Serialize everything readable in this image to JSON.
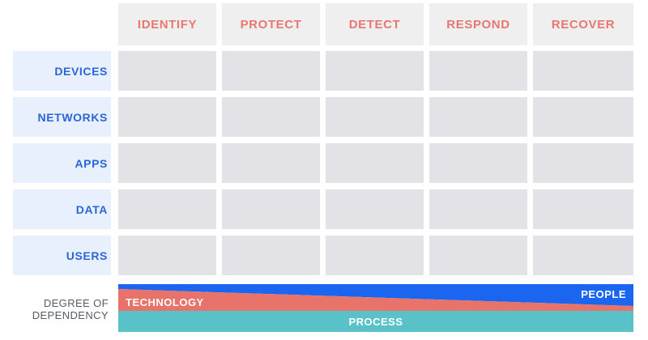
{
  "columns": [
    "IDENTIFY",
    "PROTECT",
    "DETECT",
    "RESPOND",
    "RECOVER"
  ],
  "rows": [
    "DEVICES",
    "NETWORKS",
    "APPS",
    "DATA",
    "USERS"
  ],
  "dependency": {
    "label_line1": "DEGREE OF",
    "label_line2": "DEPENDENCY",
    "people": "PEOPLE",
    "technology": "TECHNOLOGY",
    "process": "PROCESS"
  },
  "colors": {
    "header_text": "#e8776f",
    "row_text": "#2a66d9",
    "people": "#1a66f0",
    "technology": "#e8736a",
    "process": "#58c2c8"
  }
}
